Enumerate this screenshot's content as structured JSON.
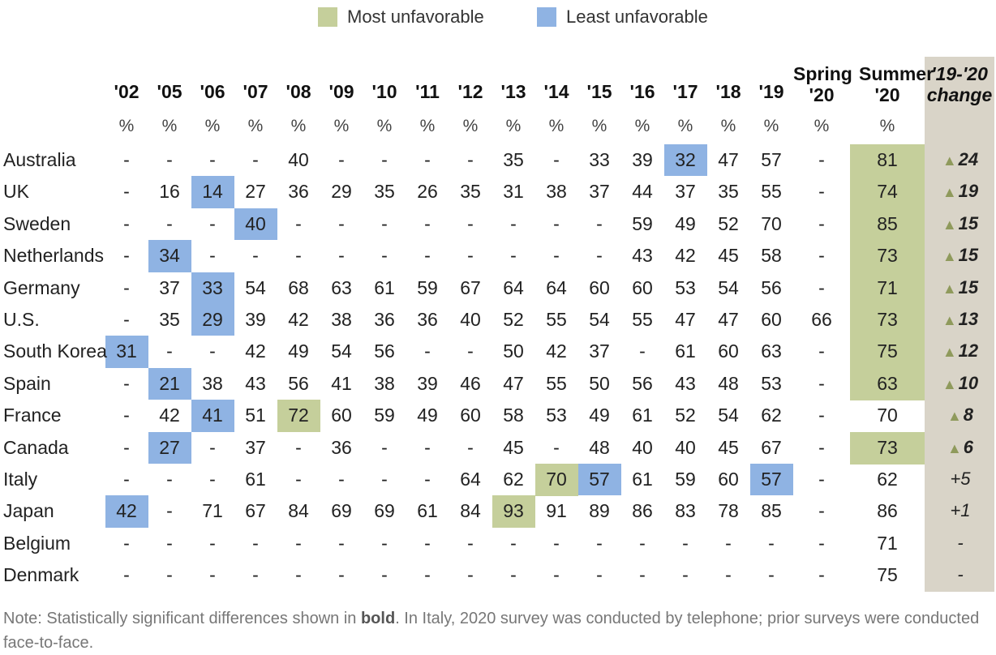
{
  "legend": {
    "most_label": "Most unfavorable",
    "least_label": "Least unfavorable",
    "most_color": "#c5cf9b",
    "least_color": "#8fb3e3"
  },
  "chart_data": {
    "type": "table",
    "columns": [
      "'02",
      "'05",
      "'06",
      "'07",
      "'08",
      "'09",
      "'10",
      "'11",
      "'12",
      "'13",
      "'14",
      "'15",
      "'16",
      "'17",
      "'18",
      "'19",
      "Spring '20",
      "Summer '20"
    ],
    "column_headers": [
      {
        "line1": "",
        "line2": "'02"
      },
      {
        "line1": "",
        "line2": "'05"
      },
      {
        "line1": "",
        "line2": "'06"
      },
      {
        "line1": "",
        "line2": "'07"
      },
      {
        "line1": "",
        "line2": "'08"
      },
      {
        "line1": "",
        "line2": "'09"
      },
      {
        "line1": "",
        "line2": "'10"
      },
      {
        "line1": "",
        "line2": "'11"
      },
      {
        "line1": "",
        "line2": "'12"
      },
      {
        "line1": "",
        "line2": "'13"
      },
      {
        "line1": "",
        "line2": "'14"
      },
      {
        "line1": "",
        "line2": "'15"
      },
      {
        "line1": "",
        "line2": "'16"
      },
      {
        "line1": "",
        "line2": "'17"
      },
      {
        "line1": "",
        "line2": "'18"
      },
      {
        "line1": "",
        "line2": "'19"
      },
      {
        "line1": "Spring",
        "line2": "'20"
      },
      {
        "line1": "Summer",
        "line2": "'20"
      }
    ],
    "change_header": {
      "line1": "'19-'20",
      "line2": "change"
    },
    "unit": "%",
    "rows": [
      {
        "country": "Australia",
        "values": [
          "-",
          "-",
          "-",
          "-",
          "40",
          "-",
          "-",
          "-",
          "-",
          "35",
          "-",
          "33",
          "39",
          "32",
          "47",
          "57",
          "-",
          "81"
        ],
        "change": "24",
        "change_sig": true,
        "change_up": true,
        "most": [
          17
        ],
        "least": [
          13
        ]
      },
      {
        "country": "UK",
        "values": [
          "-",
          "16",
          "14",
          "27",
          "36",
          "29",
          "35",
          "26",
          "35",
          "31",
          "38",
          "37",
          "44",
          "37",
          "35",
          "55",
          "-",
          "74"
        ],
        "change": "19",
        "change_sig": true,
        "change_up": true,
        "most": [
          17
        ],
        "least": [
          2
        ]
      },
      {
        "country": "Sweden",
        "values": [
          "-",
          "-",
          "-",
          "40",
          "-",
          "-",
          "-",
          "-",
          "-",
          "-",
          "-",
          "-",
          "59",
          "49",
          "52",
          "70",
          "-",
          "85"
        ],
        "change": "15",
        "change_sig": true,
        "change_up": true,
        "most": [
          17
        ],
        "least": [
          3
        ]
      },
      {
        "country": "Netherlands",
        "values": [
          "-",
          "34",
          "-",
          "-",
          "-",
          "-",
          "-",
          "-",
          "-",
          "-",
          "-",
          "-",
          "43",
          "42",
          "45",
          "58",
          "-",
          "73"
        ],
        "change": "15",
        "change_sig": true,
        "change_up": true,
        "most": [
          17
        ],
        "least": [
          1
        ]
      },
      {
        "country": "Germany",
        "values": [
          "-",
          "37",
          "33",
          "54",
          "68",
          "63",
          "61",
          "59",
          "67",
          "64",
          "64",
          "60",
          "60",
          "53",
          "54",
          "56",
          "-",
          "71"
        ],
        "change": "15",
        "change_sig": true,
        "change_up": true,
        "most": [
          17
        ],
        "least": [
          2
        ]
      },
      {
        "country": "U.S.",
        "values": [
          "-",
          "35",
          "29",
          "39",
          "42",
          "38",
          "36",
          "36",
          "40",
          "52",
          "55",
          "54",
          "55",
          "47",
          "47",
          "60",
          "66",
          "73"
        ],
        "change": "13",
        "change_sig": true,
        "change_up": true,
        "most": [
          17
        ],
        "least": [
          2
        ]
      },
      {
        "country": "South Korea",
        "values": [
          "31",
          "-",
          "-",
          "42",
          "49",
          "54",
          "56",
          "-",
          "-",
          "50",
          "42",
          "37",
          "-",
          "61",
          "60",
          "63",
          "-",
          "75"
        ],
        "change": "12",
        "change_sig": true,
        "change_up": true,
        "most": [
          17
        ],
        "least": [
          0
        ]
      },
      {
        "country": "Spain",
        "values": [
          "-",
          "21",
          "38",
          "43",
          "56",
          "41",
          "38",
          "39",
          "46",
          "47",
          "55",
          "50",
          "56",
          "43",
          "48",
          "53",
          "-",
          "63"
        ],
        "change": "10",
        "change_sig": true,
        "change_up": true,
        "most": [
          17
        ],
        "least": [
          1
        ]
      },
      {
        "country": "France",
        "values": [
          "-",
          "42",
          "41",
          "51",
          "72",
          "60",
          "59",
          "49",
          "60",
          "58",
          "53",
          "49",
          "61",
          "52",
          "54",
          "62",
          "-",
          "70"
        ],
        "change": "8",
        "change_sig": true,
        "change_up": true,
        "most": [
          4
        ],
        "least": [
          2
        ]
      },
      {
        "country": "Canada",
        "values": [
          "-",
          "27",
          "-",
          "37",
          "-",
          "36",
          "-",
          "-",
          "-",
          "45",
          "-",
          "48",
          "40",
          "40",
          "45",
          "67",
          "-",
          "73"
        ],
        "change": "6",
        "change_sig": true,
        "change_up": true,
        "most": [
          17
        ],
        "least": [
          1
        ]
      },
      {
        "country": "Italy",
        "values": [
          "-",
          "-",
          "-",
          "61",
          "-",
          "-",
          "-",
          "-",
          "64",
          "62",
          "70",
          "57",
          "61",
          "59",
          "60",
          "57",
          "-",
          "62"
        ],
        "change": "+5",
        "change_sig": false,
        "change_up": false,
        "most": [
          10
        ],
        "least": [
          11,
          15
        ]
      },
      {
        "country": "Japan",
        "values": [
          "42",
          "-",
          "71",
          "67",
          "84",
          "69",
          "69",
          "61",
          "84",
          "93",
          "91",
          "89",
          "86",
          "83",
          "78",
          "85",
          "-",
          "86"
        ],
        "change": "+1",
        "change_sig": false,
        "change_up": false,
        "most": [
          9
        ],
        "least": [
          0
        ]
      },
      {
        "country": "Belgium",
        "values": [
          "-",
          "-",
          "-",
          "-",
          "-",
          "-",
          "-",
          "-",
          "-",
          "-",
          "-",
          "-",
          "-",
          "-",
          "-",
          "-",
          "-",
          "71"
        ],
        "change": "-",
        "change_sig": false,
        "change_up": false,
        "most": [],
        "least": []
      },
      {
        "country": "Denmark",
        "values": [
          "-",
          "-",
          "-",
          "-",
          "-",
          "-",
          "-",
          "-",
          "-",
          "-",
          "-",
          "-",
          "-",
          "-",
          "-",
          "-",
          "-",
          "75"
        ],
        "change": "-",
        "change_sig": false,
        "change_up": false,
        "most": [],
        "least": []
      }
    ]
  },
  "note": {
    "prefix": "Note: Statistically significant differences shown in ",
    "bold": "bold",
    "suffix": ". In Italy, 2020 survey was conducted by telephone; prior surveys were conducted face-to-face."
  }
}
